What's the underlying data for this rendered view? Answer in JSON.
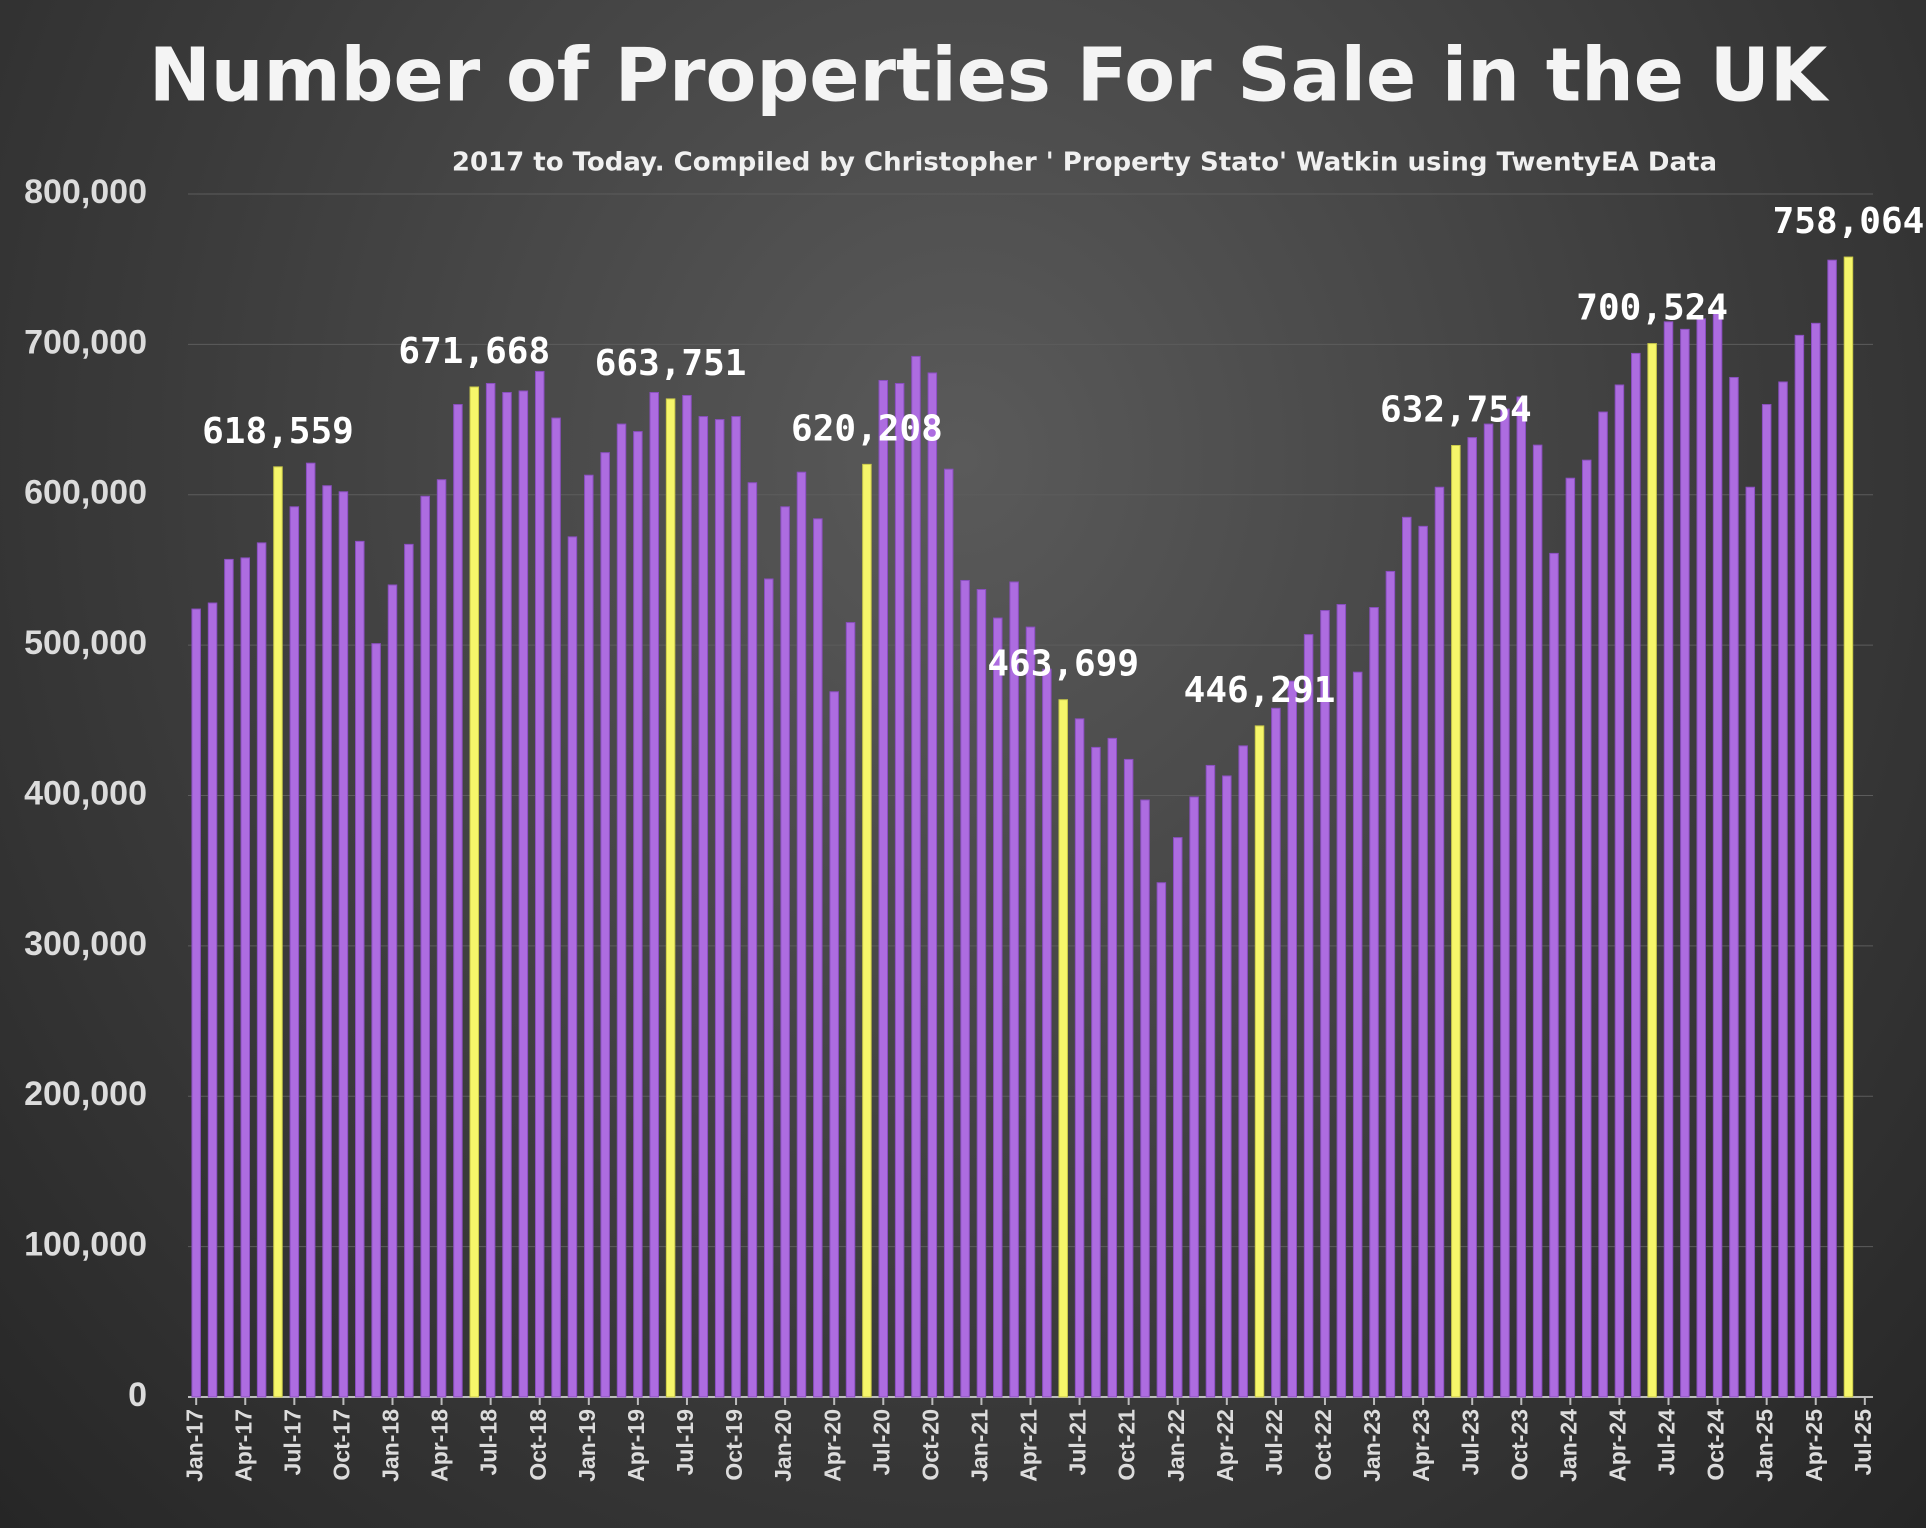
{
  "chart_data": {
    "type": "bar",
    "title": "Number of Properties For Sale in the UK",
    "subtitle": "2017 to Today. Compiled by Christopher ' Property Stato' Watkin using TwentyEA Data",
    "categories": [
      "Jan-17",
      null,
      null,
      "Apr-17",
      null,
      null,
      "Jul-17",
      null,
      null,
      "Oct-17",
      null,
      null,
      "Jan-18",
      null,
      null,
      "Apr-18",
      null,
      null,
      "Jul-18",
      null,
      null,
      "Oct-18",
      null,
      null,
      "Jan-19",
      null,
      null,
      "Apr-19",
      null,
      null,
      "Jul-19",
      null,
      null,
      "Oct-19",
      null,
      null,
      "Jan-20",
      null,
      null,
      "Apr-20",
      null,
      null,
      "Jul-20",
      null,
      null,
      "Oct-20",
      null,
      null,
      "Jan-21",
      null,
      null,
      "Apr-21",
      null,
      null,
      "Jul-21",
      null,
      null,
      "Oct-21",
      null,
      null,
      "Jan-22",
      null,
      null,
      "Apr-22",
      null,
      null,
      "Jul-22",
      null,
      null,
      "Oct-22",
      null,
      null,
      "Jan-23",
      null,
      null,
      "Apr-23",
      null,
      null,
      "Jul-23",
      null,
      null,
      "Oct-23",
      null,
      null,
      "Jan-24",
      null,
      null,
      "Apr-24",
      null,
      null,
      "Jul-24",
      null,
      null,
      "Oct-24",
      null,
      null,
      "Jan-25",
      null,
      null,
      "Apr-25",
      null,
      null,
      "Jul-25"
    ],
    "values": [
      524000,
      528000,
      557000,
      558000,
      568000,
      618559,
      592000,
      621000,
      606000,
      602000,
      569000,
      501000,
      540000,
      567000,
      599000,
      610000,
      660000,
      671668,
      674000,
      668000,
      669000,
      682000,
      651000,
      572000,
      613000,
      628000,
      647000,
      642000,
      668000,
      663751,
      666000,
      652000,
      650000,
      652000,
      608000,
      544000,
      592000,
      615000,
      584000,
      469000,
      515000,
      620208,
      676000,
      674000,
      692000,
      681000,
      617000,
      543000,
      537000,
      518000,
      542000,
      512000,
      484000,
      463699,
      451000,
      432000,
      438000,
      424000,
      397000,
      342000,
      372000,
      399000,
      420000,
      413000,
      433000,
      446291,
      458000,
      476000,
      507000,
      523000,
      527000,
      482000,
      525000,
      549000,
      585000,
      579000,
      605000,
      632754,
      638000,
      647000,
      657000,
      665000,
      633000,
      561000,
      611000,
      623000,
      655000,
      673000,
      694000,
      700524,
      715000,
      710000,
      717000,
      721000,
      678000,
      605000,
      660000,
      675000,
      706000,
      714000,
      756000,
      758064,
      null
    ],
    "value_labels": [
      null,
      null,
      null,
      null,
      null,
      "618,559",
      null,
      null,
      null,
      null,
      null,
      null,
      null,
      null,
      null,
      null,
      null,
      "671,668",
      null,
      null,
      null,
      null,
      null,
      null,
      null,
      null,
      null,
      null,
      null,
      "663,751",
      null,
      null,
      null,
      null,
      null,
      null,
      null,
      null,
      null,
      null,
      null,
      "620,208",
      null,
      null,
      null,
      null,
      null,
      null,
      null,
      null,
      null,
      null,
      null,
      "463,699",
      null,
      null,
      null,
      null,
      null,
      null,
      null,
      null,
      null,
      null,
      null,
      "446,291",
      null,
      null,
      null,
      null,
      null,
      null,
      null,
      null,
      null,
      null,
      null,
      "632,754",
      null,
      null,
      null,
      null,
      null,
      null,
      null,
      null,
      null,
      null,
      null,
      "700,524",
      null,
      null,
      null,
      null,
      null,
      null,
      null,
      null,
      null,
      null,
      null,
      "758,064",
      null
    ],
    "color": "#ad6ce0",
    "highlight_color": "#f6f66a",
    "ylim": [
      0,
      800000
    ],
    "yticks": [
      0,
      {
        "value": 100000,
        "label": "100,000"
      },
      {
        "value": 200000,
        "label": "200,000"
      },
      {
        "value": 300000,
        "label": "300,000"
      },
      {
        "value": 400000,
        "label": "400,000"
      },
      {
        "value": 500000,
        "label": "500,000"
      },
      {
        "value": 600000,
        "label": "600,000"
      },
      {
        "value": 700000,
        "label": "700,000"
      },
      {
        "value": 800000,
        "label": "800,000"
      }
    ],
    "grid": true
  }
}
